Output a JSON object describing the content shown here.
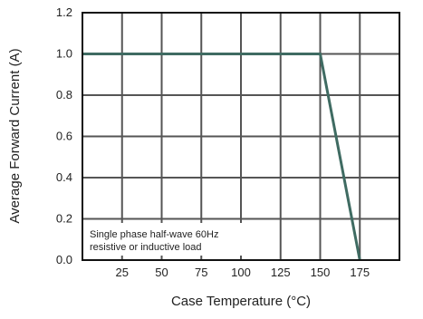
{
  "chart_data": {
    "type": "line",
    "title": "",
    "xlabel": "Case Temperature (°C)",
    "ylabel": "Average Forward Current (A)",
    "xlim": [
      0,
      200
    ],
    "ylim": [
      0,
      1.2
    ],
    "x_tick_labels": [
      "25",
      "50",
      "75",
      "100",
      "125",
      "150",
      "175"
    ],
    "y_tick_labels": [
      "0.0",
      "0.2",
      "0.4",
      "0.6",
      "0.8",
      "1.0",
      "1.2"
    ],
    "grid": true,
    "series": [
      {
        "x": [
          0,
          150,
          175
        ],
        "y": [
          1.0,
          1.0,
          0.0
        ]
      }
    ],
    "annotation": [
      "Single phase half-wave 60Hz",
      "resistive or inductive load"
    ],
    "colors": {
      "line": "#3f6b62",
      "grid": "#555555",
      "frame": "#111111"
    }
  }
}
